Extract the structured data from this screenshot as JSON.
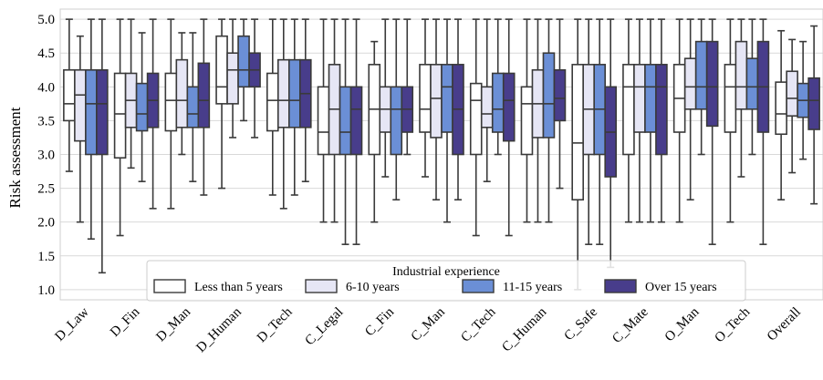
{
  "chart_data": {
    "type": "box",
    "ylabel": "Risk assessment",
    "ylim": [
      0.85,
      5.15
    ],
    "yticks": [
      1.0,
      1.5,
      2.0,
      2.5,
      3.0,
      3.5,
      4.0,
      4.5,
      5.0
    ],
    "grid": "horizontal",
    "legend": {
      "title": "Industrial experience",
      "placement": "lower-center"
    },
    "categories": [
      "D_Law",
      "D_Fin",
      "D_Man",
      "D_Human",
      "D_Tech",
      "C_Legal",
      "C_Fin",
      "C_Man",
      "C_Tech",
      "C_Human",
      "C_Safe",
      "C_Mate",
      "O_Man",
      "O_Tech",
      "Overall"
    ],
    "series": [
      {
        "name": "Less than 5 years",
        "color": "#ffffff",
        "boxes": [
          {
            "whislo": 2.75,
            "q1": 3.5,
            "med": 3.75,
            "q3": 4.25,
            "whishi": 5.0
          },
          {
            "whislo": 1.8,
            "q1": 2.95,
            "med": 3.6,
            "q3": 4.2,
            "whishi": 5.0
          },
          {
            "whislo": 2.2,
            "q1": 3.35,
            "med": 3.8,
            "q3": 4.2,
            "whishi": 5.0
          },
          {
            "whislo": 2.5,
            "q1": 3.75,
            "med": 4.0,
            "q3": 4.75,
            "whishi": 5.0
          },
          {
            "whislo": 2.4,
            "q1": 3.35,
            "med": 3.8,
            "q3": 4.2,
            "whishi": 5.0
          },
          {
            "whislo": 2.0,
            "q1": 3.0,
            "med": 3.33,
            "q3": 4.0,
            "whishi": 5.0
          },
          {
            "whislo": 2.0,
            "q1": 3.0,
            "med": 3.67,
            "q3": 4.33,
            "whishi": 4.67
          },
          {
            "whislo": 2.67,
            "q1": 3.33,
            "med": 3.67,
            "q3": 4.33,
            "whishi": 5.0
          },
          {
            "whislo": 1.8,
            "q1": 3.0,
            "med": 3.8,
            "q3": 4.05,
            "whishi": 5.0
          },
          {
            "whislo": 2.0,
            "q1": 3.0,
            "med": 3.75,
            "q3": 4.0,
            "whishi": 5.0
          },
          {
            "whislo": 1.0,
            "q1": 2.33,
            "med": 3.17,
            "q3": 4.33,
            "whishi": 5.0
          },
          {
            "whislo": 2.0,
            "q1": 3.0,
            "med": 4.0,
            "q3": 4.33,
            "whishi": 5.0
          },
          {
            "whislo": 2.0,
            "q1": 3.33,
            "med": 3.83,
            "q3": 4.33,
            "whishi": 5.0
          },
          {
            "whislo": 2.0,
            "q1": 3.33,
            "med": 4.0,
            "q3": 4.33,
            "whishi": 5.0
          },
          {
            "whislo": 2.33,
            "q1": 3.3,
            "med": 3.6,
            "q3": 4.07,
            "whishi": 4.83
          }
        ]
      },
      {
        "name": "6-10 years",
        "color": "#e6e6f5",
        "boxes": [
          {
            "whislo": 2.0,
            "q1": 3.2,
            "med": 3.88,
            "q3": 4.25,
            "whishi": 4.75
          },
          {
            "whislo": 2.8,
            "q1": 3.4,
            "med": 3.8,
            "q3": 4.2,
            "whishi": 5.0
          },
          {
            "whislo": 3.0,
            "q1": 3.4,
            "med": 3.8,
            "q3": 4.4,
            "whishi": 4.8
          },
          {
            "whislo": 3.25,
            "q1": 3.75,
            "med": 4.25,
            "q3": 4.5,
            "whishi": 5.0
          },
          {
            "whislo": 2.2,
            "q1": 3.4,
            "med": 3.8,
            "q3": 4.4,
            "whishi": 5.0
          },
          {
            "whislo": 2.0,
            "q1": 3.0,
            "med": 3.67,
            "q3": 4.33,
            "whishi": 5.0
          },
          {
            "whislo": 2.67,
            "q1": 3.33,
            "med": 3.67,
            "q3": 4.0,
            "whishi": 5.0
          },
          {
            "whislo": 2.33,
            "q1": 3.25,
            "med": 3.83,
            "q3": 4.33,
            "whishi": 5.0
          },
          {
            "whislo": 2.6,
            "q1": 3.4,
            "med": 3.6,
            "q3": 4.0,
            "whishi": 5.0
          },
          {
            "whislo": 2.0,
            "q1": 3.25,
            "med": 3.75,
            "q3": 4.25,
            "whishi": 5.0
          },
          {
            "whislo": 1.67,
            "q1": 3.0,
            "med": 3.67,
            "q3": 4.33,
            "whishi": 5.0
          },
          {
            "whislo": 2.0,
            "q1": 3.33,
            "med": 4.0,
            "q3": 4.33,
            "whishi": 5.0
          },
          {
            "whislo": 2.33,
            "q1": 3.67,
            "med": 4.0,
            "q3": 4.42,
            "whishi": 5.0
          },
          {
            "whislo": 2.67,
            "q1": 3.67,
            "med": 4.0,
            "q3": 4.67,
            "whishi": 5.0
          },
          {
            "whislo": 2.73,
            "q1": 3.57,
            "med": 3.83,
            "q3": 4.23,
            "whishi": 4.7
          }
        ]
      },
      {
        "name": "11-15 years",
        "color": "#6b8fd6",
        "boxes": [
          {
            "whislo": 1.75,
            "q1": 3.0,
            "med": 3.75,
            "q3": 4.25,
            "whishi": 5.0
          },
          {
            "whislo": 2.6,
            "q1": 3.35,
            "med": 3.6,
            "q3": 4.05,
            "whishi": 4.8
          },
          {
            "whislo": 2.6,
            "q1": 3.4,
            "med": 3.6,
            "q3": 4.0,
            "whishi": 4.8
          },
          {
            "whislo": 3.5,
            "q1": 4.0,
            "med": 4.25,
            "q3": 4.75,
            "whishi": 5.0
          },
          {
            "whislo": 2.4,
            "q1": 3.4,
            "med": 3.8,
            "q3": 4.4,
            "whishi": 5.0
          },
          {
            "whislo": 1.67,
            "q1": 3.0,
            "med": 3.33,
            "q3": 4.0,
            "whishi": 5.0
          },
          {
            "whislo": 2.33,
            "q1": 3.0,
            "med": 3.67,
            "q3": 4.0,
            "whishi": 5.0
          },
          {
            "whislo": 2.0,
            "q1": 3.33,
            "med": 4.0,
            "q3": 4.33,
            "whishi": 5.0
          },
          {
            "whislo": 3.0,
            "q1": 3.33,
            "med": 3.67,
            "q3": 4.2,
            "whishi": 5.0
          },
          {
            "whislo": 2.0,
            "q1": 3.25,
            "med": 3.75,
            "q3": 4.5,
            "whishi": 5.0
          },
          {
            "whislo": 1.67,
            "q1": 3.0,
            "med": 3.67,
            "q3": 4.33,
            "whishi": 5.0
          },
          {
            "whislo": 2.0,
            "q1": 3.33,
            "med": 4.0,
            "q3": 4.33,
            "whishi": 5.0
          },
          {
            "whislo": 3.0,
            "q1": 3.67,
            "med": 4.0,
            "q3": 4.67,
            "whishi": 5.0
          },
          {
            "whislo": 3.0,
            "q1": 3.67,
            "med": 4.0,
            "q3": 4.42,
            "whishi": 5.0
          },
          {
            "whislo": 2.93,
            "q1": 3.55,
            "med": 3.8,
            "q3": 4.05,
            "whishi": 4.67
          }
        ]
      },
      {
        "name": "Over 15 years",
        "color": "#483d8b",
        "boxes": [
          {
            "whislo": 1.25,
            "q1": 3.0,
            "med": 3.75,
            "q3": 4.25,
            "whishi": 5.0
          },
          {
            "whislo": 2.2,
            "q1": 3.4,
            "med": 3.8,
            "q3": 4.2,
            "whishi": 5.0
          },
          {
            "whislo": 2.4,
            "q1": 3.4,
            "med": 3.8,
            "q3": 4.35,
            "whishi": 5.0
          },
          {
            "whislo": 3.25,
            "q1": 4.0,
            "med": 4.25,
            "q3": 4.5,
            "whishi": 5.0
          },
          {
            "whislo": 2.6,
            "q1": 3.4,
            "med": 3.9,
            "q3": 4.4,
            "whishi": 5.0
          },
          {
            "whislo": 1.67,
            "q1": 3.0,
            "med": 3.67,
            "q3": 4.0,
            "whishi": 5.0
          },
          {
            "whislo": 3.0,
            "q1": 3.33,
            "med": 3.67,
            "q3": 4.0,
            "whishi": 5.0
          },
          {
            "whislo": 2.33,
            "q1": 3.0,
            "med": 3.67,
            "q3": 4.33,
            "whishi": 5.0
          },
          {
            "whislo": 1.8,
            "q1": 3.2,
            "med": 3.8,
            "q3": 4.2,
            "whishi": 5.0
          },
          {
            "whislo": 2.5,
            "q1": 3.5,
            "med": 3.83,
            "q3": 4.25,
            "whishi": 5.0
          },
          {
            "whislo": 1.33,
            "q1": 2.67,
            "med": 3.33,
            "q3": 4.0,
            "whishi": 5.0
          },
          {
            "whislo": 2.0,
            "q1": 3.0,
            "med": 4.0,
            "q3": 4.33,
            "whishi": 5.0
          },
          {
            "whislo": 1.67,
            "q1": 3.42,
            "med": 4.0,
            "q3": 4.67,
            "whishi": 5.0
          },
          {
            "whislo": 1.67,
            "q1": 3.33,
            "med": 4.0,
            "q3": 4.67,
            "whishi": 5.0
          },
          {
            "whislo": 2.27,
            "q1": 3.37,
            "med": 3.8,
            "q3": 4.13,
            "whishi": 4.9
          }
        ]
      }
    ]
  }
}
